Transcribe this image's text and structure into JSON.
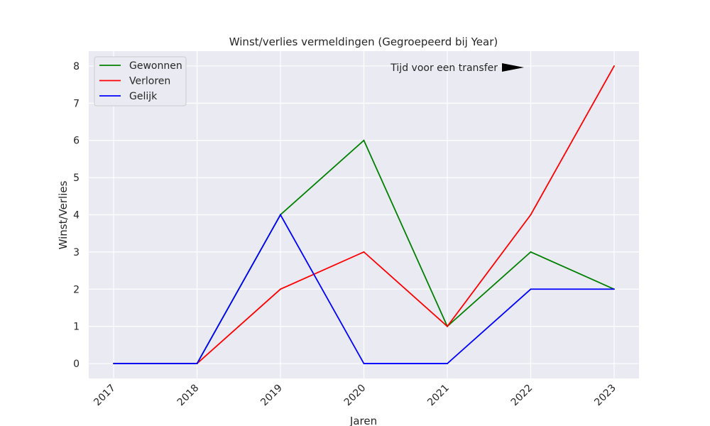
{
  "chart_data": {
    "type": "line",
    "title": "Winst/verlies vermeldingen (Gegroepeerd bij Year)",
    "xlabel": "Jaren",
    "ylabel": "Winst/Verlies",
    "categories": [
      "2017",
      "2018",
      "2019",
      "2020",
      "2021",
      "2022",
      "2023"
    ],
    "ylim": [
      -0.4,
      8.4
    ],
    "yticks": [
      "0",
      "1",
      "2",
      "3",
      "4",
      "5",
      "6",
      "7",
      "8"
    ],
    "grid": true,
    "legend_position": "top-left",
    "background": "#eaeaf2",
    "series": [
      {
        "name": "Gewonnen",
        "color": "#008000",
        "values": [
          0,
          0,
          4,
          6,
          1,
          3,
          2
        ]
      },
      {
        "name": "Verloren",
        "color": "#ff0000",
        "values": [
          0,
          0,
          2,
          3,
          1,
          4,
          8
        ]
      },
      {
        "name": "Gelijk",
        "color": "#0000ff",
        "values": [
          0,
          0,
          4,
          0,
          0,
          2,
          2
        ]
      }
    ],
    "annotation": {
      "text": "Tijd voor een transfer",
      "x": "2021.8",
      "y": 8,
      "arrow_color": "#000000"
    }
  }
}
